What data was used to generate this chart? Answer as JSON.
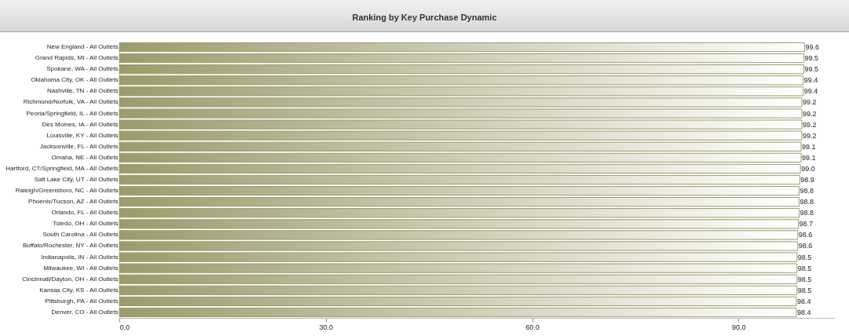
{
  "chart_data": {
    "type": "bar",
    "orientation": "horizontal",
    "title": "Ranking by Key Purchase Dynamic",
    "categories": [
      "New England - All Outlets",
      "Grand Rapids, MI - All Outlets",
      "Spokane, WA - All Outlets",
      "Oklahoma City, OK - All Outlets",
      "Nashville, TN - All Outlets",
      "Richmond/Norfolk, VA - All Outlets",
      "Peoria/Springfield, IL - All Outlets",
      "Des Moines, IA - All Outlets",
      "Louisville, KY - All Outlets",
      "Jacksonville, FL - All Outlets",
      "Omaha, NE - All Outlets",
      "Hartford, CT/Springfield, MA - All Outlets",
      "Salt Lake City, UT - All Outlets",
      "Raleigh/Greensboro, NC - All Outlets",
      "Phoenix/Tucson, AZ - All Outlets",
      "Orlando, FL - All Outlets",
      "Toledo, OH - All Outlets",
      "South Carolina - All Outlets",
      "Buffalo/Rochester, NY - All Outlets",
      "Indianapolis, IN - All Outlets",
      "Milwaukee, WI - All Outlets",
      "Cincinnati/Dayton, OH - All Outlets",
      "Kansas City, KS - All Outlets",
      "Pittsburgh, PA - All Outlets",
      "Denver, CO - All Outlets"
    ],
    "values": [
      99.6,
      99.5,
      99.5,
      99.4,
      99.4,
      99.2,
      99.2,
      99.2,
      99.2,
      99.1,
      99.1,
      99.0,
      98.9,
      98.8,
      98.8,
      98.8,
      98.7,
      98.6,
      98.6,
      98.5,
      98.5,
      98.5,
      98.5,
      98.4,
      98.4
    ],
    "value_labels": [
      "99.6",
      "99.5",
      "99.5",
      "99.4",
      "99.4",
      "99.2",
      "99.2",
      "99.2",
      "99.2",
      "99.1",
      "99.1",
      "99.0",
      "98.9",
      "98.8",
      "98.8",
      "98.8",
      "98.7",
      "98.6",
      "98.6",
      "98.5",
      "98.5",
      "98.5",
      "98.5",
      "98.4",
      "98.4"
    ],
    "color": "#9c9b6c",
    "xlim": [
      0,
      104
    ],
    "xticks": [
      {
        "value": 0,
        "label": "0.0"
      },
      {
        "value": 30,
        "label": "30.0"
      },
      {
        "value": 60,
        "label": "60.0"
      },
      {
        "value": 90,
        "label": "90.0"
      }
    ],
    "grid": false
  }
}
